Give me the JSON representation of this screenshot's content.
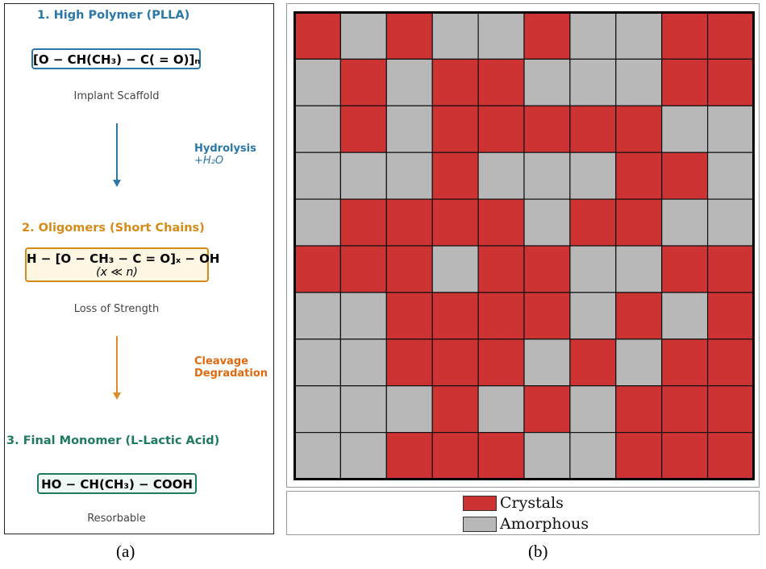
{
  "panel_a": {
    "stages": [
      {
        "title": "1. High Polymer (PLLA)",
        "formula": "[O − CH(CH₃) − C( = O)]ₙ",
        "formula_line2": "",
        "note": "Implant Scaffold",
        "color": "#2A77A8",
        "box_fill": "#FFFFFF"
      },
      {
        "title": "2. Oligomers (Short Chains)",
        "formula": "H − [O − CH₃ − C = O]ₓ − OH",
        "formula_line2": "(x ≪ n)",
        "note": "Loss of Strength",
        "color": "#D68A18",
        "box_fill": "#FDF6E3"
      },
      {
        "title": "3. Final Monomer (L-Lactic Acid)",
        "formula": "HO − CH(CH₃) − COOH",
        "formula_line2": "",
        "note": "Resorbable",
        "color": "#1E7A5E",
        "box_fill": "#EEF8F4"
      }
    ],
    "steps": [
      {
        "line1": "Hydrolysis",
        "line2": "+H₂O",
        "color": "#2A77A8"
      },
      {
        "line1": "Cleavage",
        "line2": "Degradation",
        "color": "#E06A10"
      }
    ],
    "caption": "(a)"
  },
  "panel_b": {
    "grid": [
      [
        1,
        0,
        1,
        0,
        0,
        1,
        0,
        0,
        1,
        1
      ],
      [
        0,
        1,
        0,
        1,
        1,
        0,
        0,
        0,
        1,
        1
      ],
      [
        0,
        1,
        0,
        1,
        1,
        1,
        1,
        1,
        0,
        0
      ],
      [
        0,
        0,
        0,
        1,
        0,
        0,
        0,
        1,
        1,
        0
      ],
      [
        0,
        1,
        1,
        1,
        1,
        0,
        1,
        1,
        0,
        0
      ],
      [
        1,
        1,
        1,
        0,
        1,
        1,
        0,
        0,
        1,
        1
      ],
      [
        0,
        0,
        1,
        1,
        1,
        1,
        0,
        1,
        0,
        1
      ],
      [
        0,
        0,
        1,
        1,
        1,
        0,
        1,
        0,
        1,
        1
      ],
      [
        0,
        0,
        0,
        1,
        0,
        1,
        0,
        1,
        1,
        1
      ],
      [
        0,
        0,
        1,
        1,
        1,
        0,
        0,
        1,
        1,
        1
      ]
    ],
    "colors": {
      "crystal": "#CD3333",
      "amorphous": "#B8B8B8"
    },
    "legend": {
      "crystal_label": "Crystals",
      "amorphous_label": "Amorphous"
    },
    "caption": "(b)"
  }
}
